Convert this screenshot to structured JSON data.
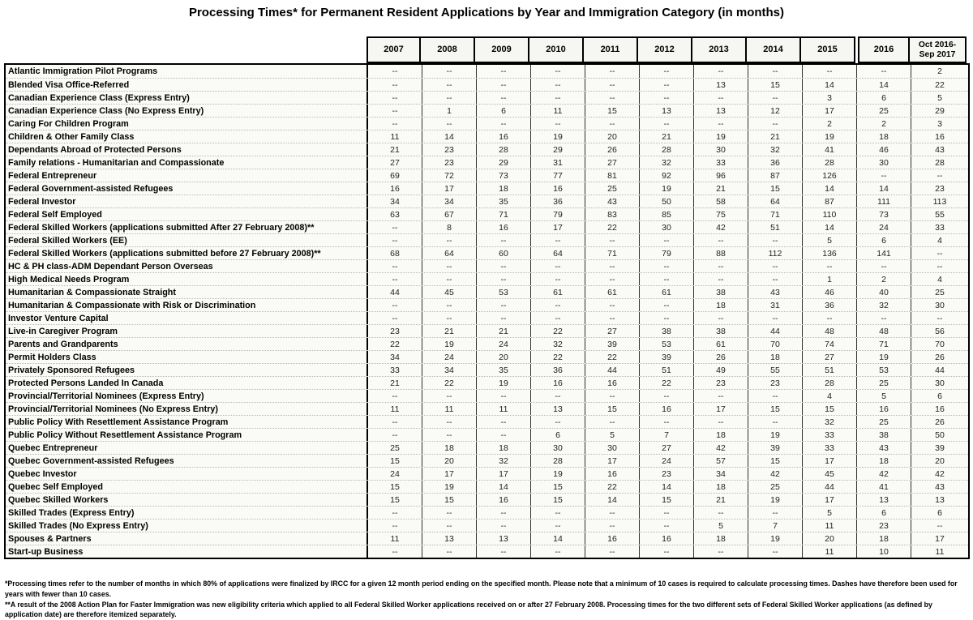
{
  "title": "Processing Times* for Permanent Resident Applications by Year and Immigration Category (in months)",
  "chart_data": {
    "type": "table",
    "title": "Processing Times* for Permanent Resident Applications by Year and Immigration Category (in months)",
    "columns": [
      "2007",
      "2008",
      "2009",
      "2010",
      "2011",
      "2012",
      "2013",
      "2014",
      "2015",
      "2016",
      "Oct 2016-Sep 2017"
    ],
    "rows": [
      {
        "label": "Atlantic Immigration Pilot Programs",
        "values": [
          "--",
          "--",
          "--",
          "--",
          "--",
          "--",
          "--",
          "--",
          "--",
          "--",
          "2"
        ]
      },
      {
        "label": "Blended Visa Office-Referred",
        "values": [
          "--",
          "--",
          "--",
          "--",
          "--",
          "--",
          "13",
          "15",
          "14",
          "14",
          "22"
        ]
      },
      {
        "label": "Canadian Experience Class (Express Entry)",
        "values": [
          "--",
          "--",
          "--",
          "--",
          "--",
          "--",
          "--",
          "--",
          "3",
          "6",
          "5"
        ]
      },
      {
        "label": "Canadian Experience Class (No Express Entry)",
        "values": [
          "--",
          "1",
          "6",
          "11",
          "15",
          "13",
          "13",
          "12",
          "17",
          "25",
          "29"
        ]
      },
      {
        "label": "Caring For Children Program",
        "values": [
          "--",
          "--",
          "--",
          "--",
          "--",
          "--",
          "--",
          "--",
          "2",
          "2",
          "3"
        ]
      },
      {
        "label": "Children & Other Family Class",
        "values": [
          "11",
          "14",
          "16",
          "19",
          "20",
          "21",
          "19",
          "21",
          "19",
          "18",
          "16"
        ]
      },
      {
        "label": "Dependants Abroad of Protected Persons",
        "values": [
          "21",
          "23",
          "28",
          "29",
          "26",
          "28",
          "30",
          "32",
          "41",
          "46",
          "43"
        ]
      },
      {
        "label": "Family relations - Humanitarian and Compassionate",
        "values": [
          "27",
          "23",
          "29",
          "31",
          "27",
          "32",
          "33",
          "36",
          "28",
          "30",
          "28"
        ]
      },
      {
        "label": "Federal Entrepreneur",
        "values": [
          "69",
          "72",
          "73",
          "77",
          "81",
          "92",
          "96",
          "87",
          "126",
          "--",
          "--"
        ]
      },
      {
        "label": "Federal Government-assisted Refugees",
        "values": [
          "16",
          "17",
          "18",
          "16",
          "25",
          "19",
          "21",
          "15",
          "14",
          "14",
          "23"
        ]
      },
      {
        "label": "Federal Investor",
        "values": [
          "34",
          "34",
          "35",
          "36",
          "43",
          "50",
          "58",
          "64",
          "87",
          "111",
          "113"
        ]
      },
      {
        "label": "Federal Self Employed",
        "values": [
          "63",
          "67",
          "71",
          "79",
          "83",
          "85",
          "75",
          "71",
          "110",
          "73",
          "55"
        ]
      },
      {
        "label": "Federal Skilled Workers (applications submitted After 27 February 2008)**",
        "values": [
          "--",
          "8",
          "16",
          "17",
          "22",
          "30",
          "42",
          "51",
          "14",
          "24",
          "33"
        ]
      },
      {
        "label": "Federal Skilled Workers (EE)",
        "values": [
          "--",
          "--",
          "--",
          "--",
          "--",
          "--",
          "--",
          "--",
          "5",
          "6",
          "4"
        ]
      },
      {
        "label": "Federal Skilled Workers (applications submitted before 27 February 2008)**",
        "values": [
          "68",
          "64",
          "60",
          "64",
          "71",
          "79",
          "88",
          "112",
          "136",
          "141",
          "--"
        ]
      },
      {
        "label": "HC & PH class-ADM Dependant Person Overseas",
        "values": [
          "--",
          "--",
          "--",
          "--",
          "--",
          "--",
          "--",
          "--",
          "--",
          "--",
          "--"
        ]
      },
      {
        "label": "High Medical Needs Program",
        "values": [
          "--",
          "--",
          "--",
          "--",
          "--",
          "--",
          "--",
          "--",
          "1",
          "2",
          "4"
        ]
      },
      {
        "label": "Humanitarian & Compassionate Straight",
        "values": [
          "44",
          "45",
          "53",
          "61",
          "61",
          "61",
          "38",
          "43",
          "46",
          "40",
          "25"
        ]
      },
      {
        "label": "Humanitarian & Compassionate with Risk or  Discrimination",
        "values": [
          "--",
          "--",
          "--",
          "--",
          "--",
          "--",
          "18",
          "31",
          "36",
          "32",
          "30"
        ]
      },
      {
        "label": "Investor Venture Capital",
        "values": [
          "--",
          "--",
          "--",
          "--",
          "--",
          "--",
          "--",
          "--",
          "--",
          "--",
          "--"
        ]
      },
      {
        "label": "Live-in Caregiver Program",
        "values": [
          "23",
          "21",
          "21",
          "22",
          "27",
          "38",
          "38",
          "44",
          "48",
          "48",
          "56"
        ]
      },
      {
        "label": "Parents and Grandparents",
        "values": [
          "22",
          "19",
          "24",
          "32",
          "39",
          "53",
          "61",
          "70",
          "74",
          "71",
          "70"
        ]
      },
      {
        "label": "Permit Holders Class",
        "values": [
          "34",
          "24",
          "20",
          "22",
          "22",
          "39",
          "26",
          "18",
          "27",
          "19",
          "26"
        ]
      },
      {
        "label": "Privately Sponsored Refugees",
        "values": [
          "33",
          "34",
          "35",
          "36",
          "44",
          "51",
          "49",
          "55",
          "51",
          "53",
          "44"
        ]
      },
      {
        "label": "Protected Persons Landed In Canada",
        "values": [
          "21",
          "22",
          "19",
          "16",
          "16",
          "22",
          "23",
          "23",
          "28",
          "25",
          "30"
        ]
      },
      {
        "label": "Provincial/Territorial Nominees  (Express Entry)",
        "values": [
          "--",
          "--",
          "--",
          "--",
          "--",
          "--",
          "--",
          "--",
          "4",
          "5",
          "6"
        ]
      },
      {
        "label": "Provincial/Territorial Nominees (No Express Entry)",
        "values": [
          "11",
          "11",
          "11",
          "13",
          "15",
          "16",
          "17",
          "15",
          "15",
          "16",
          "16"
        ]
      },
      {
        "label": "Public Policy With Resettlement Assistance Program",
        "values": [
          "--",
          "--",
          "--",
          "--",
          "--",
          "--",
          "--",
          "--",
          "32",
          "25",
          "26"
        ]
      },
      {
        "label": "Public Policy Without Resettlement Assistance Program",
        "values": [
          "--",
          "--",
          "--",
          "6",
          "5",
          "7",
          "18",
          "19",
          "33",
          "38",
          "50"
        ]
      },
      {
        "label": "Quebec Entrepreneur",
        "values": [
          "25",
          "18",
          "18",
          "30",
          "30",
          "27",
          "42",
          "39",
          "33",
          "43",
          "39"
        ]
      },
      {
        "label": "Quebec Government-assisted Refugees",
        "values": [
          "15",
          "20",
          "32",
          "28",
          "17",
          "24",
          "57",
          "15",
          "17",
          "18",
          "20"
        ]
      },
      {
        "label": "Quebec Investor",
        "values": [
          "24",
          "17",
          "17",
          "19",
          "16",
          "23",
          "34",
          "42",
          "45",
          "42",
          "42"
        ]
      },
      {
        "label": "Quebec Self Employed",
        "values": [
          "15",
          "19",
          "14",
          "15",
          "22",
          "14",
          "18",
          "25",
          "44",
          "41",
          "43"
        ]
      },
      {
        "label": "Quebec Skilled Workers",
        "values": [
          "15",
          "15",
          "16",
          "15",
          "14",
          "15",
          "21",
          "19",
          "17",
          "13",
          "13"
        ]
      },
      {
        "label": "Skilled Trades  (Express Entry)",
        "values": [
          "--",
          "--",
          "--",
          "--",
          "--",
          "--",
          "--",
          "--",
          "5",
          "6",
          "6"
        ]
      },
      {
        "label": "Skilled Trades (No Express Entry)",
        "values": [
          "--",
          "--",
          "--",
          "--",
          "--",
          "--",
          "5",
          "7",
          "11",
          "23",
          "--"
        ]
      },
      {
        "label": "Spouses & Partners",
        "values": [
          "11",
          "13",
          "13",
          "14",
          "16",
          "16",
          "18",
          "19",
          "20",
          "18",
          "17"
        ]
      },
      {
        "label": "Start-up Business",
        "values": [
          "--",
          "--",
          "--",
          "--",
          "--",
          "--",
          "--",
          "--",
          "11",
          "10",
          "11"
        ]
      }
    ]
  },
  "footnotes": [
    "*Processing times refer to the number of months in which 80% of applications were finalized by IRCC for a given 12 month period ending on the specified month. Please note that a minimum of 10 cases is required to calculate processing times. Dashes have therefore been used for years with fewer than 10 cases.",
    "**A result of the 2008 Action Plan for Faster Immigration was new eligibility criteria which applied to all Federal Skilled Worker applications received on or after 27 February 2008. Processing times for the two different sets of Federal Skilled Worker applications (as defined by application date) are therefore itemized separately."
  ]
}
